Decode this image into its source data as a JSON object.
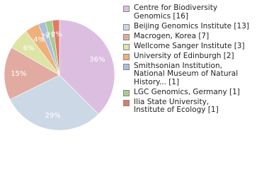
{
  "chart_data": {
    "type": "pie",
    "categories": [
      "Centre for Biodiversity\nGenomics [16]",
      "Beijing Genomics Institute [13]",
      "Macrogen, Korea [7]",
      "Wellcome Sanger Institute [3]",
      "University of Edinburgh [2]",
      "Smithsonian Institution,\nNational Museum of Natural\nHistory... [1]",
      "LGC Genomics, Germany [1]",
      "Ilia State University,\nInstitute of Ecology [1]"
    ],
    "values": [
      36,
      29,
      15,
      6,
      4,
      2,
      2,
      2
    ],
    "value_labels": [
      "36%",
      "29%",
      "15%",
      "6%",
      "4%",
      "2%",
      "2%",
      "2%"
    ],
    "colors": [
      "#dcbfe0",
      "#cdd8e6",
      "#e2aba1",
      "#dde4a6",
      "#f0b07c",
      "#a9bfdd",
      "#a8cc8e",
      "#e07a68"
    ]
  }
}
